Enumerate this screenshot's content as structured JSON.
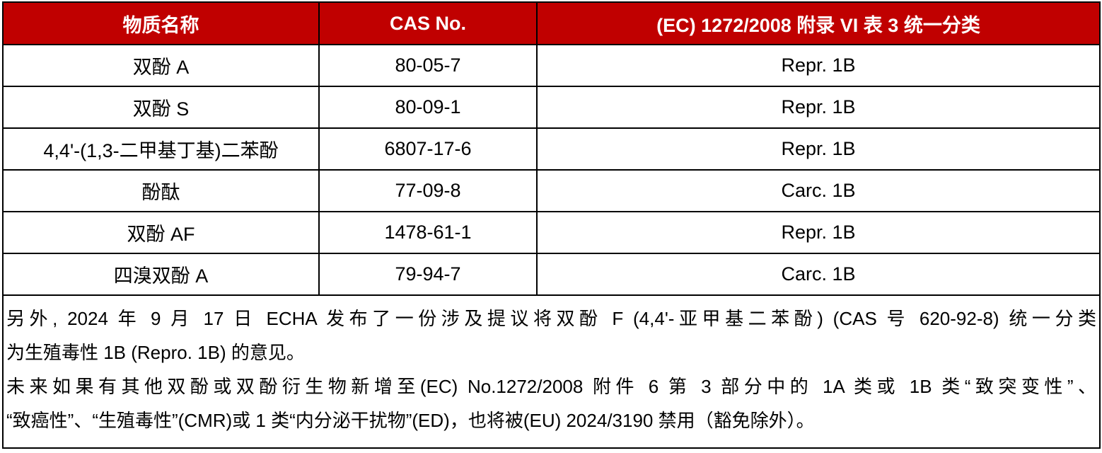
{
  "header": {
    "colors": {
      "header_bg": "#c00000",
      "header_text": "#ffffff"
    },
    "columns": [
      "物质名称",
      "CAS No.",
      "(EC) 1272/2008 附录 VI 表 3 统一分类"
    ]
  },
  "rows": [
    {
      "name": "双酚 A",
      "cas": "80-05-7",
      "class": "Repr. 1B"
    },
    {
      "name": "双酚 S",
      "cas": "80-09-1",
      "class": "Repr. 1B"
    },
    {
      "name": "4,4'-(1,3-二甲基丁基)二苯酚",
      "cas": "6807-17-6",
      "class": "Repr. 1B"
    },
    {
      "name": "酚酞",
      "cas": "77-09-8",
      "class": "Carc. 1B"
    },
    {
      "name": "双酚 AF",
      "cas": "1478-61-1",
      "class": "Repr. 1B"
    },
    {
      "name": "四溴双酚 A",
      "cas": "79-94-7",
      "class": "Carc. 1B"
    }
  ],
  "note": {
    "lines": [
      "另外, 2024 年 9 月 17 日 ECHA 发布了一份涉及提议将双酚 F (4,4'-亚甲基二苯酚) (CAS 号 620-92-8) 统一分类",
      "为生殖毒性 1B (Repro. 1B) 的意见。",
      "未来如果有其他双酚或双酚衍生物新增至(EC) No.1272/2008 附件 6 第 3 部分中的 1A 类或 1B 类“致突变性”、",
      "“致癌性”、“生殖毒性”(CMR)或 1 类“内分泌干扰物”(ED)，也将被(EU) 2024/3190 禁用（豁免除外）。"
    ]
  }
}
